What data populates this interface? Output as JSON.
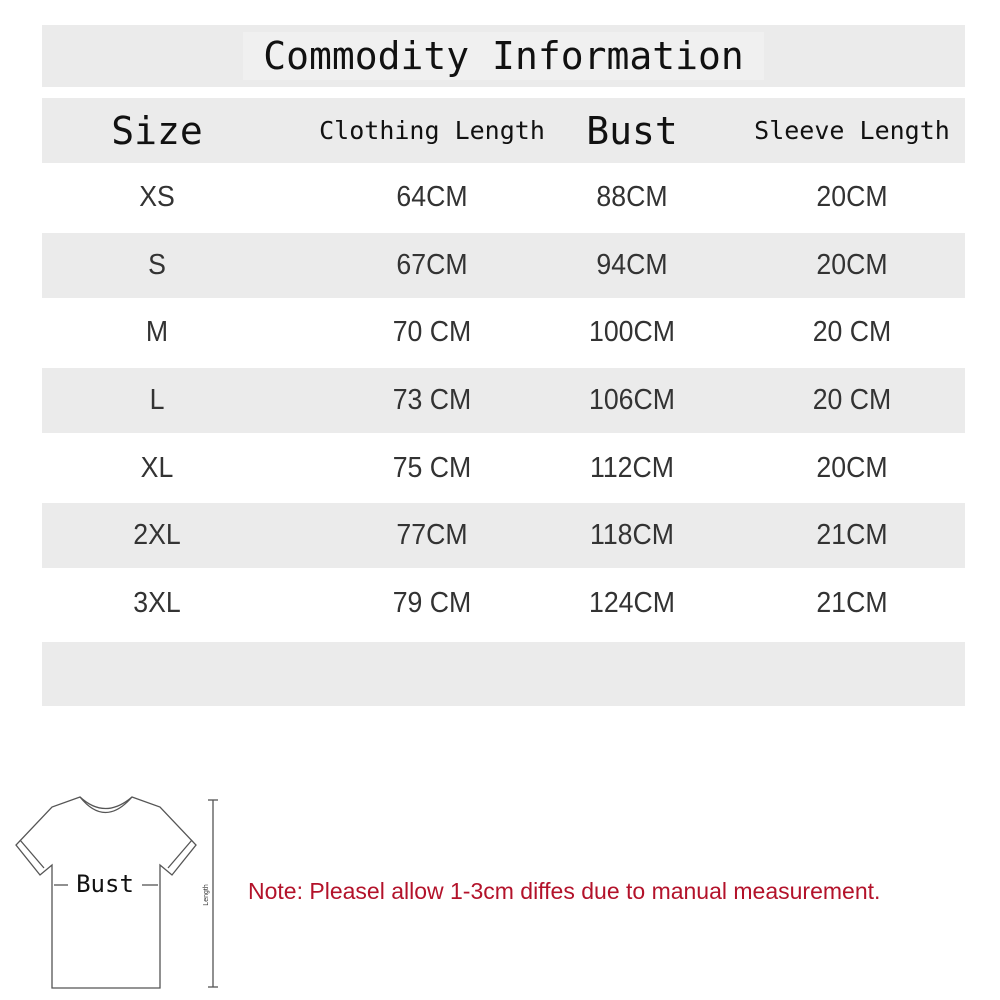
{
  "title": "Commodity Information",
  "headers": [
    "Size",
    "Clothing Length",
    "Bust",
    "Sleeve Length"
  ],
  "rows": [
    [
      "XS",
      "64CM",
      "88CM",
      "20CM"
    ],
    [
      "S",
      "67CM",
      "94CM",
      "20CM"
    ],
    [
      "M",
      "70 CM",
      "100CM",
      "20 CM"
    ],
    [
      "L",
      "73 CM",
      "106CM",
      "20 CM"
    ],
    [
      "XL",
      "75 CM",
      "112CM",
      "20CM"
    ],
    [
      "2XL",
      "77CM",
      "118CM",
      "21CM"
    ],
    [
      "3XL",
      "79 CM",
      "124CM",
      "21CM"
    ]
  ],
  "diagram": {
    "bust_label": "Bust",
    "length_label": "Length"
  },
  "note": "Note: Pleasel allow 1-3cm diffes due to manual measurement.",
  "colors": {
    "band": "#ebebeb",
    "note": "#b3122a"
  }
}
